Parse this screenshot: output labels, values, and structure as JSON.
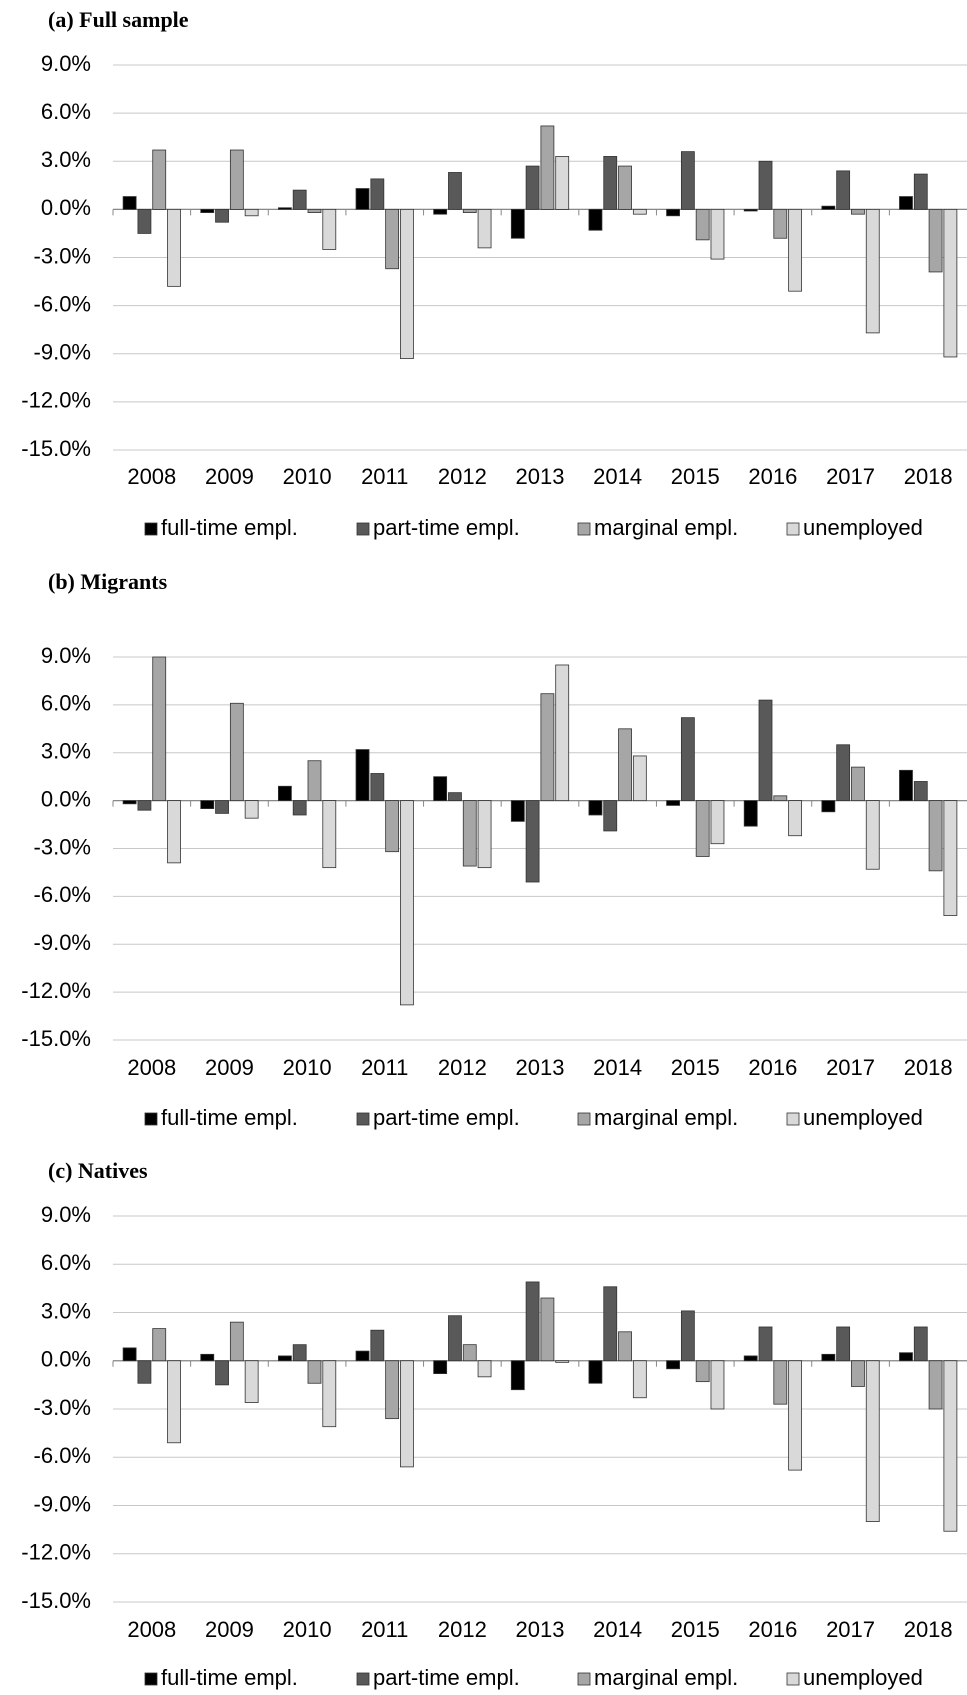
{
  "chart_data": [
    {
      "type": "bar",
      "title": "(a)  Full sample",
      "categories": [
        "2008",
        "2009",
        "2010",
        "2011",
        "2012",
        "2013",
        "2014",
        "2015",
        "2016",
        "2017",
        "2018"
      ],
      "series": [
        {
          "name": "full-time empl.",
          "color": "#000000",
          "values": [
            0.8,
            -0.2,
            0.1,
            1.3,
            -0.3,
            -1.8,
            -1.3,
            -0.4,
            -0.1,
            0.2,
            0.8
          ]
        },
        {
          "name": "part-time empl.",
          "color": "#595959",
          "values": [
            -1.5,
            -0.8,
            1.2,
            1.9,
            2.3,
            2.7,
            3.3,
            3.6,
            3.0,
            2.4,
            2.2
          ]
        },
        {
          "name": "marginal empl.",
          "color": "#a6a6a6",
          "values": [
            3.7,
            3.7,
            -0.2,
            -3.7,
            -0.2,
            5.2,
            2.7,
            -1.9,
            -1.8,
            -0.3,
            -3.9
          ]
        },
        {
          "name": "unemployed",
          "color": "#d9d9d9",
          "values": [
            -4.8,
            -0.4,
            -2.5,
            -9.3,
            -2.4,
            3.3,
            -0.3,
            -3.1,
            -5.1,
            -7.7,
            -9.2
          ]
        }
      ],
      "ylim": [
        -15,
        9
      ],
      "yticks": [
        {
          "value": -15,
          "label": "-15.0%"
        },
        {
          "value": -12,
          "label": "-12.0%"
        },
        {
          "value": -9,
          "label": "-9.0%"
        },
        {
          "value": -6,
          "label": "-6.0%"
        },
        {
          "value": -3,
          "label": "-3.0%"
        },
        {
          "value": 0,
          "label": "0.0%"
        },
        {
          "value": 3,
          "label": "3.0%"
        },
        {
          "value": 6,
          "label": "6.0%"
        },
        {
          "value": 9,
          "label": "9.0%"
        }
      ],
      "grid": true
    },
    {
      "type": "bar",
      "title": "(b)  Migrants",
      "categories": [
        "2008",
        "2009",
        "2010",
        "2011",
        "2012",
        "2013",
        "2014",
        "2015",
        "2016",
        "2017",
        "2018"
      ],
      "series": [
        {
          "name": "full-time empl.",
          "color": "#000000",
          "values": [
            -0.2,
            -0.5,
            0.9,
            3.2,
            1.5,
            -1.3,
            -0.9,
            -0.3,
            -1.6,
            -0.7,
            1.9
          ]
        },
        {
          "name": "part-time empl.",
          "color": "#595959",
          "values": [
            -0.6,
            -0.8,
            -0.9,
            1.7,
            0.5,
            -5.1,
            -1.9,
            5.2,
            6.3,
            3.5,
            1.2
          ]
        },
        {
          "name": "marginal empl.",
          "color": "#a6a6a6",
          "values": [
            9.0,
            6.1,
            2.5,
            -3.2,
            -4.1,
            6.7,
            4.5,
            -3.5,
            0.3,
            2.1,
            -4.4
          ]
        },
        {
          "name": "unemployed",
          "color": "#d9d9d9",
          "values": [
            -3.9,
            -1.1,
            -4.2,
            -12.8,
            -4.2,
            8.5,
            2.8,
            -2.7,
            -2.2,
            -4.3,
            -7.2
          ]
        }
      ],
      "ylim": [
        -15,
        9
      ],
      "yticks": [
        {
          "value": -15,
          "label": "-15.0%"
        },
        {
          "value": -12,
          "label": "-12.0%"
        },
        {
          "value": -9,
          "label": "-9.0%"
        },
        {
          "value": -6,
          "label": "-6.0%"
        },
        {
          "value": -3,
          "label": "-3.0%"
        },
        {
          "value": 0,
          "label": "0.0%"
        },
        {
          "value": 3,
          "label": "3.0%"
        },
        {
          "value": 6,
          "label": "6.0%"
        },
        {
          "value": 9,
          "label": "9.0%"
        }
      ],
      "grid": true
    },
    {
      "type": "bar",
      "title": "(c)  Natives",
      "categories": [
        "2008",
        "2009",
        "2010",
        "2011",
        "2012",
        "2013",
        "2014",
        "2015",
        "2016",
        "2017",
        "2018"
      ],
      "series": [
        {
          "name": "full-time empl.",
          "color": "#000000",
          "values": [
            0.8,
            0.4,
            0.3,
            0.6,
            -0.8,
            -1.8,
            -1.4,
            -0.5,
            0.3,
            0.4,
            0.5
          ]
        },
        {
          "name": "part-time empl.",
          "color": "#595959",
          "values": [
            -1.4,
            -1.5,
            1.0,
            1.9,
            2.8,
            4.9,
            4.6,
            3.1,
            2.1,
            2.1,
            2.1
          ]
        },
        {
          "name": "marginal empl.",
          "color": "#a6a6a6",
          "values": [
            2.0,
            2.4,
            -1.4,
            -3.6,
            1.0,
            3.9,
            1.8,
            -1.3,
            -2.7,
            -1.6,
            -3.0
          ]
        },
        {
          "name": "unemployed",
          "color": "#d9d9d9",
          "values": [
            -5.1,
            -2.6,
            -4.1,
            -6.6,
            -1.0,
            -0.1,
            -2.3,
            -3.0,
            -6.8,
            -10.0,
            -10.6
          ]
        }
      ],
      "ylim": [
        -15,
        9
      ],
      "yticks": [
        {
          "value": -15,
          "label": "-15.0%"
        },
        {
          "value": -12,
          "label": "-12.0%"
        },
        {
          "value": -9,
          "label": "-9.0%"
        },
        {
          "value": -6,
          "label": "-6.0%"
        },
        {
          "value": -3,
          "label": "-3.0%"
        },
        {
          "value": 0,
          "label": "0.0%"
        },
        {
          "value": 3,
          "label": "3.0%"
        },
        {
          "value": 6,
          "label": "6.0%"
        },
        {
          "value": 9,
          "label": "9.0%"
        }
      ],
      "grid": true
    }
  ]
}
